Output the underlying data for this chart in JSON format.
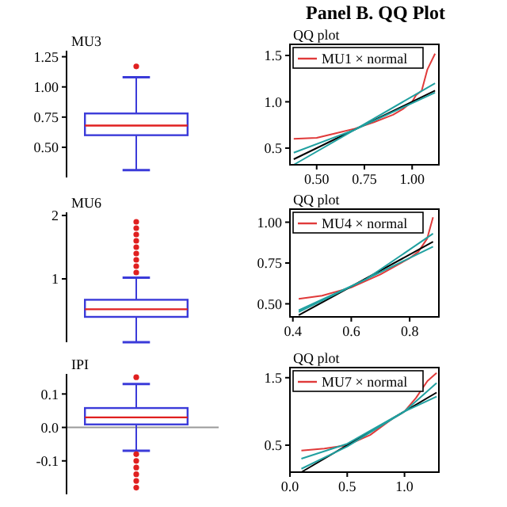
{
  "chart_data": [
    {
      "type": "box",
      "title": "MU3",
      "categories": [
        null
      ],
      "ylim": [
        0.25,
        1.3
      ],
      "yticks": [
        {
          "value": 0.5,
          "label": "0.50"
        },
        0.75,
        {
          "value": 1,
          "label": "1.00"
        },
        1.25
      ],
      "grid": false,
      "series": [
        {
          "color": "#3b3bd9",
          "boxes": [
            {
              "low": 0.31,
              "q1": 0.6,
              "median": 0.68,
              "q3": 0.78,
              "high": 1.08,
              "outliers": [
                1.17
              ]
            }
          ]
        }
      ]
    },
    {
      "type": "box",
      "title": "MU6",
      "categories": [
        null
      ],
      "ylim": [
        0,
        2.05
      ],
      "yticks": [
        1,
        2
      ],
      "grid": false,
      "series": [
        {
          "color": "#3b3bd9",
          "boxes": [
            {
              "low": 0.0,
              "q1": 0.4,
              "median": 0.52,
              "q3": 0.67,
              "high": 1.02,
              "outliers": [
                1.1,
                1.2,
                1.3,
                1.4,
                1.5,
                1.6,
                1.7,
                1.8,
                1.9
              ]
            }
          ]
        }
      ]
    },
    {
      "type": "box",
      "title": "IPI",
      "categories": [
        null
      ],
      "ylim": [
        -0.2,
        0.16
      ],
      "yticks": [
        -0.1,
        {
          "value": 0,
          "label": "0.0"
        },
        0.1
      ],
      "grid": false,
      "ref_lines": [
        {
          "axis": "y",
          "value": 0,
          "color": "#999999"
        }
      ],
      "series": [
        {
          "color": "#3b3bd9",
          "boxes": [
            {
              "low": -0.07,
              "q1": 0.009,
              "median": 0.03,
              "q3": 0.058,
              "high": 0.13,
              "outliers": [
                0.15,
                -0.08,
                -0.1,
                -0.12,
                -0.14,
                -0.16,
                -0.18
              ]
            }
          ]
        }
      ]
    },
    {
      "type": "line",
      "title": "QQ plot",
      "annotations": [
        "Panel B. QQ Plot"
      ],
      "xlim": [
        0.36,
        1.14
      ],
      "xticks": [
        {
          "value": 0.5,
          "label": "0.50"
        },
        0.75,
        {
          "value": 1,
          "label": "1.00"
        }
      ],
      "ylim": [
        0.32,
        1.62
      ],
      "yticks": [
        0.5,
        {
          "value": 1,
          "label": "1.0"
        },
        1.5
      ],
      "grid": false,
      "legend": "top left",
      "marker": "none",
      "series": [
        {
          "name": "MU1 × normal",
          "color": "#e03a3a",
          "x": [
            0.38,
            0.5,
            0.6,
            0.7,
            0.8,
            0.9,
            0.95,
            1.0,
            1.02,
            1.05,
            1.08,
            1.12
          ],
          "values": [
            0.6,
            0.61,
            0.66,
            0.71,
            0.78,
            0.86,
            0.92,
            1.0,
            1.07,
            1.12,
            1.35,
            1.52
          ]
        },
        {
          "color": "#000000",
          "x": [
            0.38,
            1.12
          ],
          "values": [
            0.38,
            1.12
          ]
        },
        {
          "color": "#20a0a0",
          "x": [
            0.38,
            0.7,
            1.12
          ],
          "values": [
            0.45,
            0.7,
            1.2
          ]
        },
        {
          "color": "#20a0a0",
          "x": [
            0.38,
            0.7,
            1.12
          ],
          "values": [
            0.32,
            0.7,
            1.1
          ]
        }
      ]
    },
    {
      "type": "line",
      "title": "QQ plot",
      "xlim": [
        0.39,
        0.9
      ],
      "xticks": [
        0.4,
        0.6,
        0.8
      ],
      "ylim": [
        0.42,
        1.08
      ],
      "yticks": [
        {
          "value": 0.5,
          "label": "0.50"
        },
        0.75,
        {
          "value": 1,
          "label": "1.00"
        }
      ],
      "grid": false,
      "legend": "top left",
      "marker": "none",
      "series": [
        {
          "name": "MU4 × normal",
          "color": "#e03a3a",
          "x": [
            0.42,
            0.5,
            0.6,
            0.7,
            0.8,
            0.83,
            0.86,
            0.88
          ],
          "values": [
            0.53,
            0.55,
            0.6,
            0.68,
            0.78,
            0.82,
            0.9,
            1.03
          ]
        },
        {
          "color": "#000000",
          "x": [
            0.42,
            0.88
          ],
          "values": [
            0.43,
            0.88
          ]
        },
        {
          "color": "#20a0a0",
          "x": [
            0.42,
            0.65,
            0.88
          ],
          "values": [
            0.46,
            0.65,
            0.93
          ]
        },
        {
          "color": "#20a0a0",
          "x": [
            0.42,
            0.65,
            0.88
          ],
          "values": [
            0.45,
            0.65,
            0.85
          ]
        }
      ]
    },
    {
      "type": "line",
      "title": "QQ plot",
      "xlim": [
        0,
        1.3
      ],
      "xticks": [
        {
          "value": 0,
          "label": "0.0"
        },
        0.5,
        {
          "value": 1,
          "label": "1.0"
        }
      ],
      "ylim": [
        0.1,
        1.65
      ],
      "yticks": [
        0.5,
        1.5
      ],
      "grid": false,
      "legend": "top left",
      "marker": "none",
      "series": [
        {
          "name": "MU7 × normal",
          "color": "#e03a3a",
          "x": [
            0.1,
            0.3,
            0.5,
            0.7,
            0.9,
            1.0,
            1.1,
            1.2,
            1.28
          ],
          "values": [
            0.42,
            0.45,
            0.5,
            0.65,
            0.9,
            1.0,
            1.2,
            1.45,
            1.57
          ]
        },
        {
          "color": "#000000",
          "x": [
            0.1,
            1.28
          ],
          "values": [
            0.1,
            1.28
          ]
        },
        {
          "color": "#20a0a0",
          "x": [
            0.1,
            0.5,
            1.0,
            1.28
          ],
          "values": [
            0.3,
            0.52,
            1.0,
            1.42
          ]
        },
        {
          "color": "#20a0a0",
          "x": [
            0.1,
            0.5,
            1.0,
            1.28
          ],
          "values": [
            0.15,
            0.48,
            1.0,
            1.22
          ]
        }
      ]
    }
  ]
}
